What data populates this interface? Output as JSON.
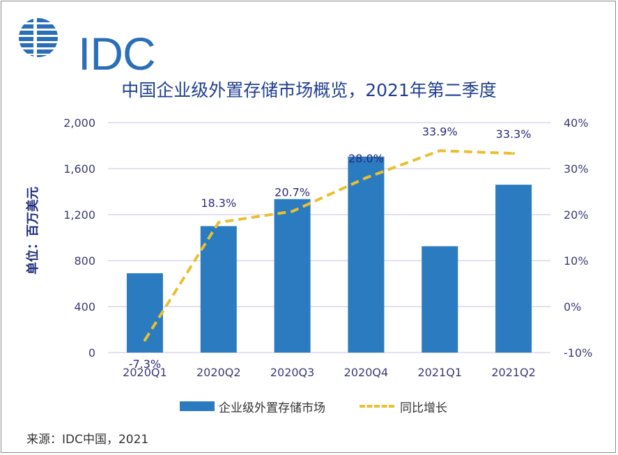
{
  "brand": {
    "name": "IDC",
    "color": "#2a6eb8"
  },
  "title": "中国企业级外置存储市场概览，2021年第二季度",
  "source": "来源：IDC中国，2021",
  "chart_data": {
    "type": "bar",
    "title": "中国企业级外置存储市场概览，2021年第二季度",
    "xlabel": "",
    "ylabel": "单位：百万美元",
    "categories": [
      "2020Q1",
      "2020Q2",
      "2020Q3",
      "2020Q4",
      "2021Q1",
      "2021Q2"
    ],
    "series": [
      {
        "name": "企业级外置存储市场",
        "type": "bar",
        "axis": "left",
        "color": "#2a7bc0",
        "values": [
          690,
          1100,
          1335,
          1705,
          925,
          1460
        ]
      },
      {
        "name": "同比增长",
        "type": "line",
        "style": "dashed",
        "axis": "right",
        "color": "#e8c030",
        "values": [
          -7.3,
          18.3,
          20.7,
          28.0,
          33.9,
          33.3
        ],
        "labels": [
          "-7.3%",
          "18.3%",
          "20.7%",
          "28.0%",
          "33.9%",
          "33.3%"
        ]
      }
    ],
    "ylim": [
      0,
      2000
    ],
    "yticks": [
      0,
      400,
      800,
      1200,
      1600,
      2000
    ],
    "ytick_labels": [
      "0",
      "400",
      "800",
      "1,200",
      "1,600",
      "2,000"
    ],
    "y2lim": [
      -10,
      40
    ],
    "y2ticks": [
      -10,
      0,
      10,
      20,
      30,
      40
    ],
    "y2tick_labels": [
      "-10%",
      "0%",
      "10%",
      "20%",
      "30%",
      "40%"
    ],
    "grid": true,
    "legend": "bottom",
    "colors": {
      "gridline": "#c9c2e6",
      "axis_text": "#3a3a78",
      "label_text": "#2a2a7a"
    }
  }
}
